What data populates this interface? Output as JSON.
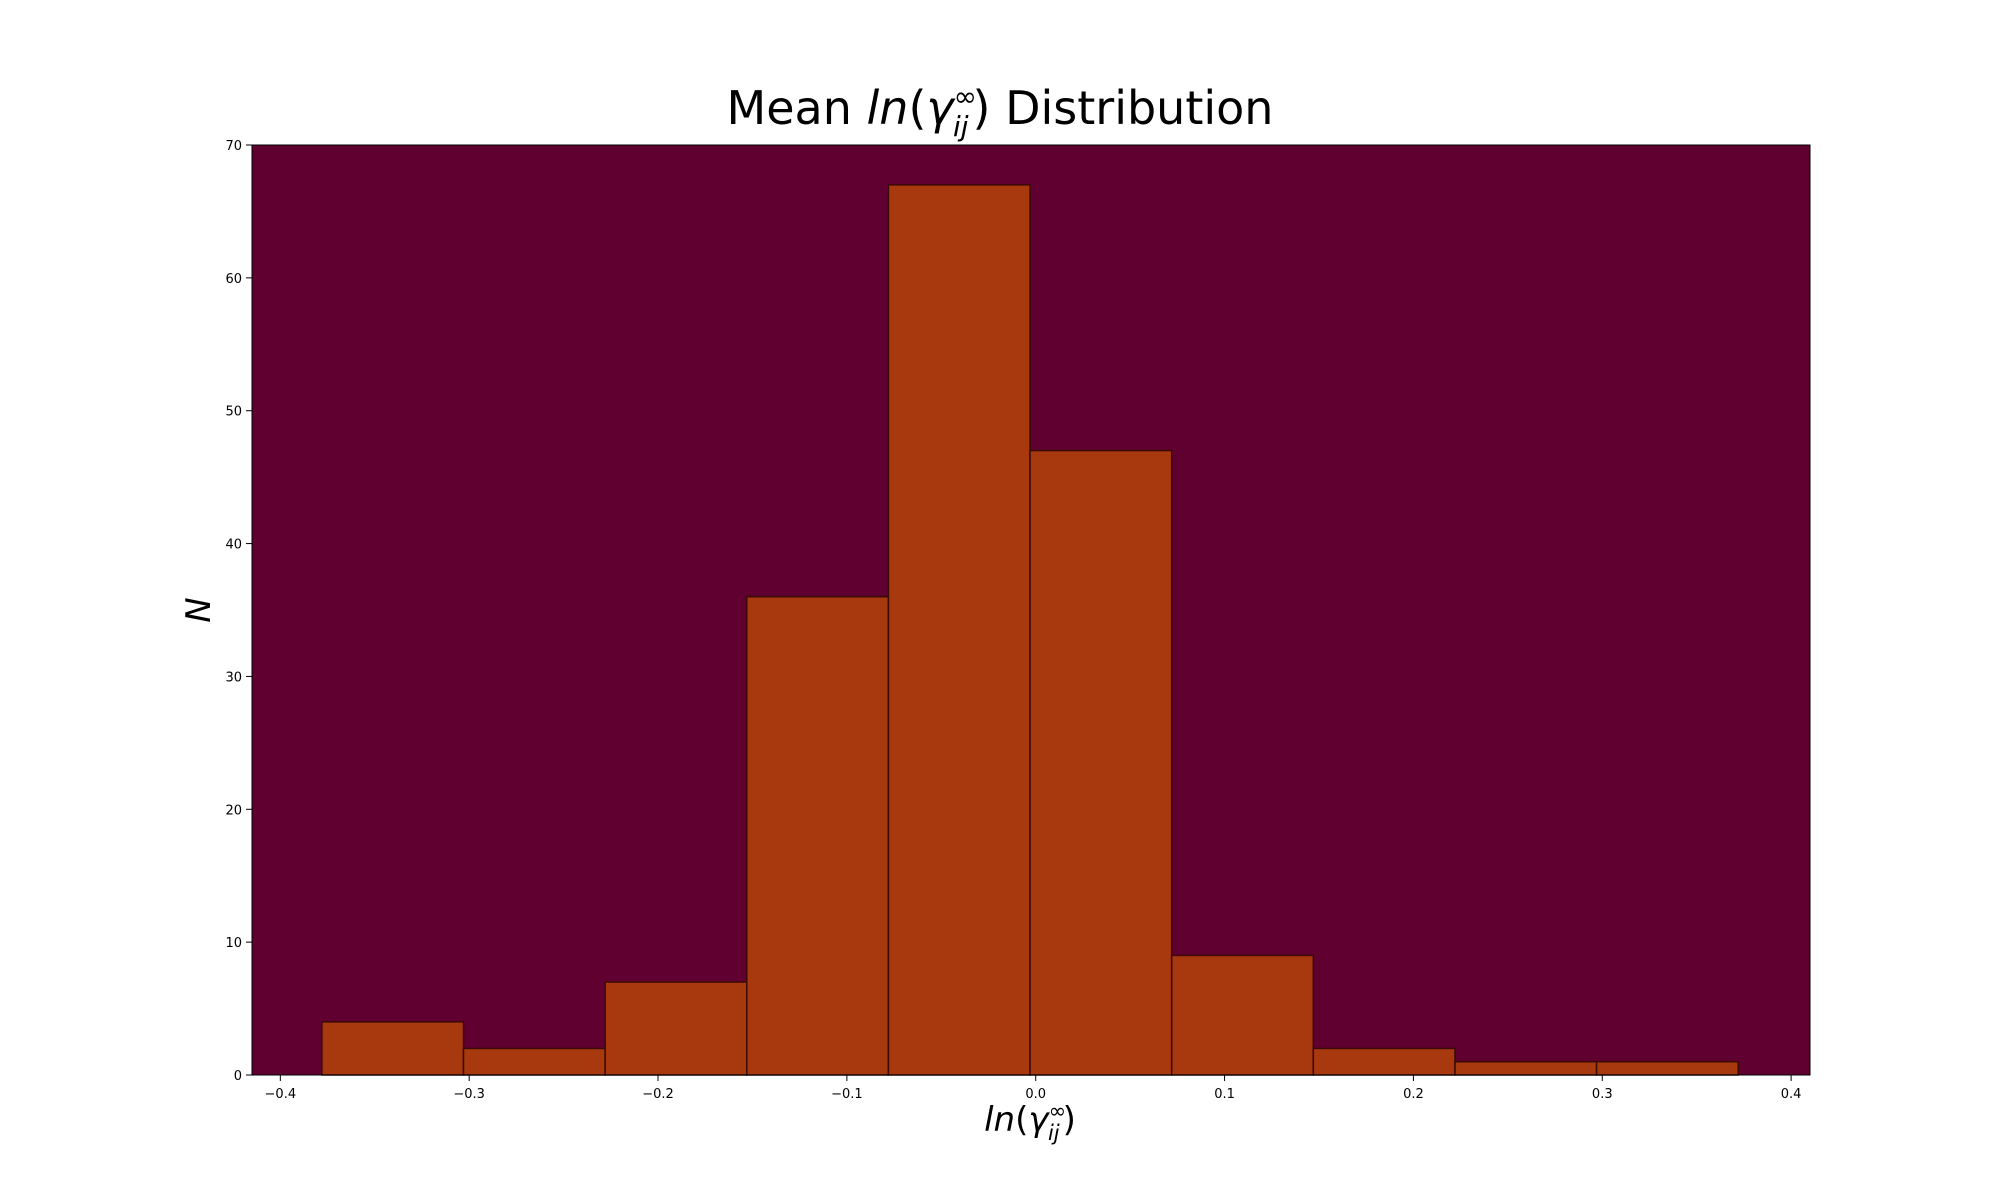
{
  "chart_data": {
    "type": "bar",
    "title": {
      "prefix": "Mean ",
      "math_ln": "ln",
      "math_open": "(",
      "math_gamma": "γ",
      "math_sub": "ij",
      "math_sup": "∞",
      "math_close": ")",
      "suffix": " Distribution"
    },
    "xlabel": {
      "math_ln": "ln",
      "math_open": "(",
      "math_gamma": "γ",
      "math_sub": "ij",
      "math_sup": "∞",
      "math_close": ")"
    },
    "ylabel": "N",
    "xlim": [
      -0.415,
      0.41
    ],
    "ylim": [
      0,
      70
    ],
    "xticks": [
      -0.4,
      -0.3,
      -0.2,
      -0.1,
      0.0,
      0.1,
      0.2,
      0.3,
      0.4
    ],
    "xtick_labels": [
      "−0.4",
      "−0.3",
      "−0.2",
      "−0.1",
      "0.0",
      "0.1",
      "0.2",
      "0.3",
      "0.4"
    ],
    "yticks": [
      0,
      10,
      20,
      30,
      40,
      50,
      60,
      70
    ],
    "ytick_labels": [
      "0",
      "10",
      "20",
      "30",
      "40",
      "50",
      "60",
      "70"
    ],
    "bin_edges": [
      -0.378,
      -0.303,
      -0.228,
      -0.153,
      -0.078,
      -0.003,
      0.072,
      0.147,
      0.222,
      0.297,
      0.372
    ],
    "values": [
      4,
      2,
      7,
      36,
      67,
      47,
      9,
      2,
      1,
      1
    ],
    "grid": false,
    "colors": {
      "plot_background": "#600030",
      "bar_fill": "#A8380E",
      "bar_edge": "#3A0A05",
      "figure_background": "#ffffff",
      "text": "#000000"
    }
  }
}
